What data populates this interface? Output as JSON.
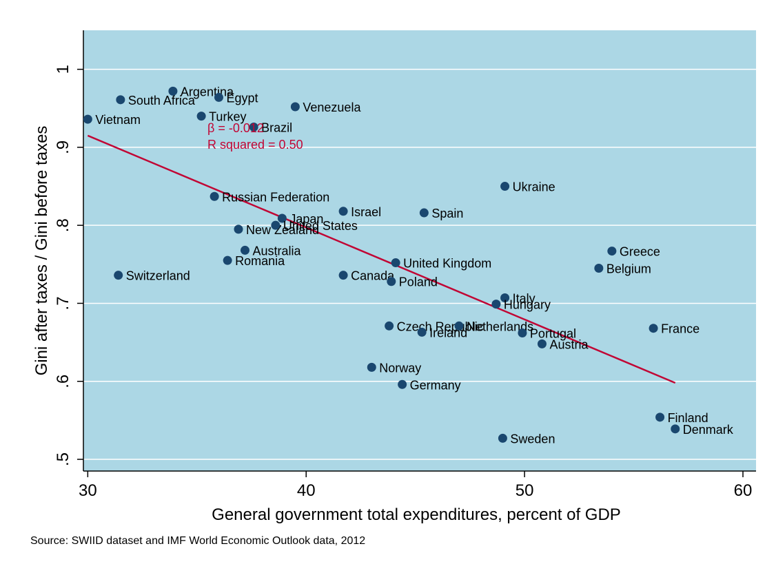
{
  "chart_data": {
    "type": "scatter",
    "xlabel": "General government total expenditures, percent of GDP",
    "ylabel": "Gini after taxes / Gini before taxes",
    "xlim": [
      29.8,
      60.6
    ],
    "ylim": [
      0.485,
      1.05
    ],
    "x_ticks": [
      30,
      40,
      50,
      60
    ],
    "x_tick_labels": [
      "30",
      "40",
      "50",
      "60"
    ],
    "y_ticks": [
      0.5,
      0.6,
      0.7,
      0.8,
      0.9,
      1.0
    ],
    "y_tick_labels": [
      ".5",
      ".6",
      ".7",
      ".8",
      ".9",
      "1"
    ],
    "grid": "horizontal",
    "colors": {
      "plot_background": "#acd7e5",
      "marker": "#1a476f",
      "fit_line": "#c10534",
      "grid": "#ffffff"
    },
    "points": [
      {
        "label": "Vietnam",
        "x": 30.0,
        "y": 0.936
      },
      {
        "label": "South Africa",
        "x": 31.5,
        "y": 0.961
      },
      {
        "label": "Argentina",
        "x": 33.9,
        "y": 0.972
      },
      {
        "label": "Egypt",
        "x": 36.0,
        "y": 0.964
      },
      {
        "label": "Turkey",
        "x": 35.2,
        "y": 0.94
      },
      {
        "label": "Venezuela",
        "x": 39.5,
        "y": 0.952
      },
      {
        "label": "Brazil",
        "x": 37.6,
        "y": 0.926
      },
      {
        "label": "Switzerland",
        "x": 31.4,
        "y": 0.736
      },
      {
        "label": "Russian Federation",
        "x": 35.8,
        "y": 0.837
      },
      {
        "label": "New Zealand",
        "x": 36.9,
        "y": 0.795
      },
      {
        "label": "Japan",
        "x": 38.9,
        "y": 0.809
      },
      {
        "label": "United States",
        "x": 38.6,
        "y": 0.8
      },
      {
        "label": "Australia",
        "x": 37.2,
        "y": 0.768
      },
      {
        "label": "Romania",
        "x": 36.4,
        "y": 0.755
      },
      {
        "label": "Israel",
        "x": 41.7,
        "y": 0.818
      },
      {
        "label": "Spain",
        "x": 45.4,
        "y": 0.816
      },
      {
        "label": "Canada",
        "x": 41.7,
        "y": 0.736
      },
      {
        "label": "United Kingdom",
        "x": 44.1,
        "y": 0.752
      },
      {
        "label": "Poland",
        "x": 43.9,
        "y": 0.728
      },
      {
        "label": "Ukraine",
        "x": 49.1,
        "y": 0.85
      },
      {
        "label": "Italy",
        "x": 49.1,
        "y": 0.707
      },
      {
        "label": "Hungary",
        "x": 48.7,
        "y": 0.699
      },
      {
        "label": "Czech Republic",
        "x": 43.8,
        "y": 0.671
      },
      {
        "label": "Netherlands",
        "x": 47.0,
        "y": 0.671
      },
      {
        "label": "Ireland",
        "x": 45.3,
        "y": 0.663
      },
      {
        "label": "Portugal",
        "x": 49.9,
        "y": 0.662
      },
      {
        "label": "Austria",
        "x": 50.8,
        "y": 0.648
      },
      {
        "label": "France",
        "x": 55.9,
        "y": 0.668
      },
      {
        "label": "Norway",
        "x": 43.0,
        "y": 0.618
      },
      {
        "label": "Germany",
        "x": 44.4,
        "y": 0.596
      },
      {
        "label": "Greece",
        "x": 54.0,
        "y": 0.767
      },
      {
        "label": "Belgium",
        "x": 53.4,
        "y": 0.745
      },
      {
        "label": "Finland",
        "x": 56.2,
        "y": 0.554
      },
      {
        "label": "Denmark",
        "x": 56.9,
        "y": 0.539
      },
      {
        "label": "Sweden",
        "x": 49.0,
        "y": 0.527
      }
    ],
    "fit_line": {
      "x": [
        30.0,
        56.9
      ],
      "y": [
        0.915,
        0.598
      ]
    },
    "annotations": [
      "β = -0.012",
      "R squared = 0.50"
    ]
  },
  "source_note": "Source: SWIID dataset and IMF World Economic Outlook data, 2012"
}
